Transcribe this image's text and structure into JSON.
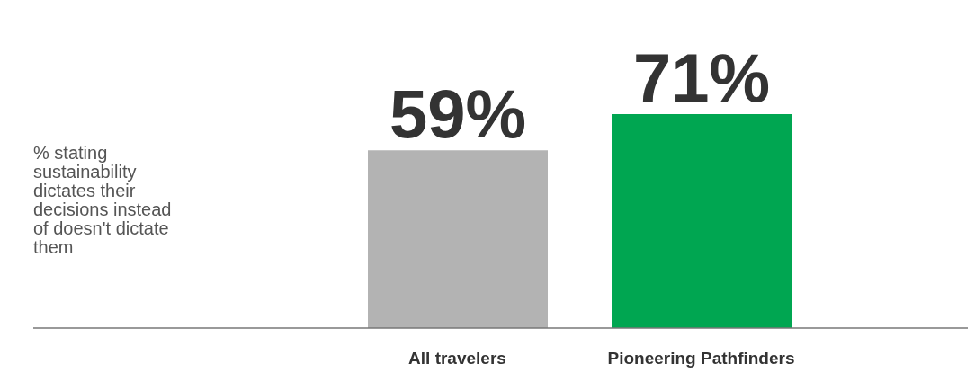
{
  "chart_data": {
    "type": "bar",
    "annotations": [
      "% stating sustainability dictates their decisions instead of doesn't dictate them"
    ],
    "categories": [
      "All travelers",
      "Pioneering Pathfinders"
    ],
    "values": [
      59,
      71
    ],
    "colors": [
      "#b3b3b3",
      "#00a651"
    ],
    "value_labels": [
      "59%",
      "71%"
    ]
  }
}
